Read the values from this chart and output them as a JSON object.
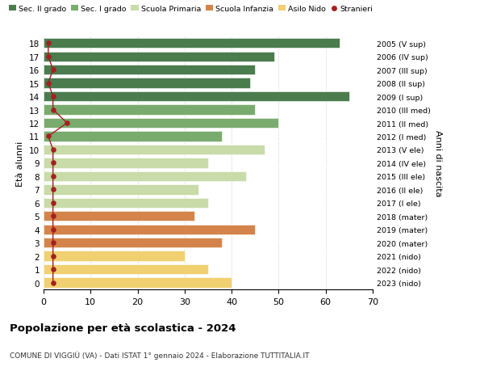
{
  "ages": [
    18,
    17,
    16,
    15,
    14,
    13,
    12,
    11,
    10,
    9,
    8,
    7,
    6,
    5,
    4,
    3,
    2,
    1,
    0
  ],
  "years": [
    "2005 (V sup)",
    "2006 (IV sup)",
    "2007 (III sup)",
    "2008 (II sup)",
    "2009 (I sup)",
    "2010 (III med)",
    "2011 (II med)",
    "2012 (I med)",
    "2013 (V ele)",
    "2014 (IV ele)",
    "2015 (III ele)",
    "2016 (II ele)",
    "2017 (I ele)",
    "2018 (mater)",
    "2019 (mater)",
    "2020 (mater)",
    "2021 (nido)",
    "2022 (nido)",
    "2023 (nido)"
  ],
  "bar_values": [
    63,
    49,
    45,
    44,
    65,
    45,
    50,
    38,
    47,
    35,
    43,
    33,
    35,
    32,
    45,
    38,
    30,
    35,
    40
  ],
  "bar_colors": [
    "#4a7c4e",
    "#4a7c4e",
    "#4a7c4e",
    "#4a7c4e",
    "#4a7c4e",
    "#7aab6e",
    "#7aab6e",
    "#7aab6e",
    "#c8dba8",
    "#c8dba8",
    "#c8dba8",
    "#c8dba8",
    "#c8dba8",
    "#d4844a",
    "#d4844a",
    "#d4844a",
    "#f0d070",
    "#f0d070",
    "#f0d070"
  ],
  "stranieri_values": [
    1,
    1,
    2,
    1,
    2,
    2,
    5,
    1,
    2,
    2,
    2,
    2,
    2,
    2,
    2,
    2,
    2,
    2,
    2
  ],
  "stranieri_color": "#a52020",
  "legend_labels": [
    "Sec. II grado",
    "Sec. I grado",
    "Scuola Primaria",
    "Scuola Infanzia",
    "Asilo Nido",
    "Stranieri"
  ],
  "legend_colors": [
    "#4a7c4e",
    "#7aab6e",
    "#c8dba8",
    "#d4844a",
    "#f0d070",
    "#a52020"
  ],
  "ylabel": "Età alunni",
  "right_label": "Anni di nascita",
  "title": "Popolazione per età scolastica - 2024",
  "subtitle": "COMUNE DI VIGGIÙ (VA) - Dati ISTAT 1° gennaio 2024 - Elaborazione TUTTITALIA.IT",
  "xlim": [
    0,
    70
  ],
  "xticks": [
    0,
    10,
    20,
    30,
    40,
    50,
    60,
    70
  ],
  "background_color": "#ffffff",
  "bar_height": 0.75
}
